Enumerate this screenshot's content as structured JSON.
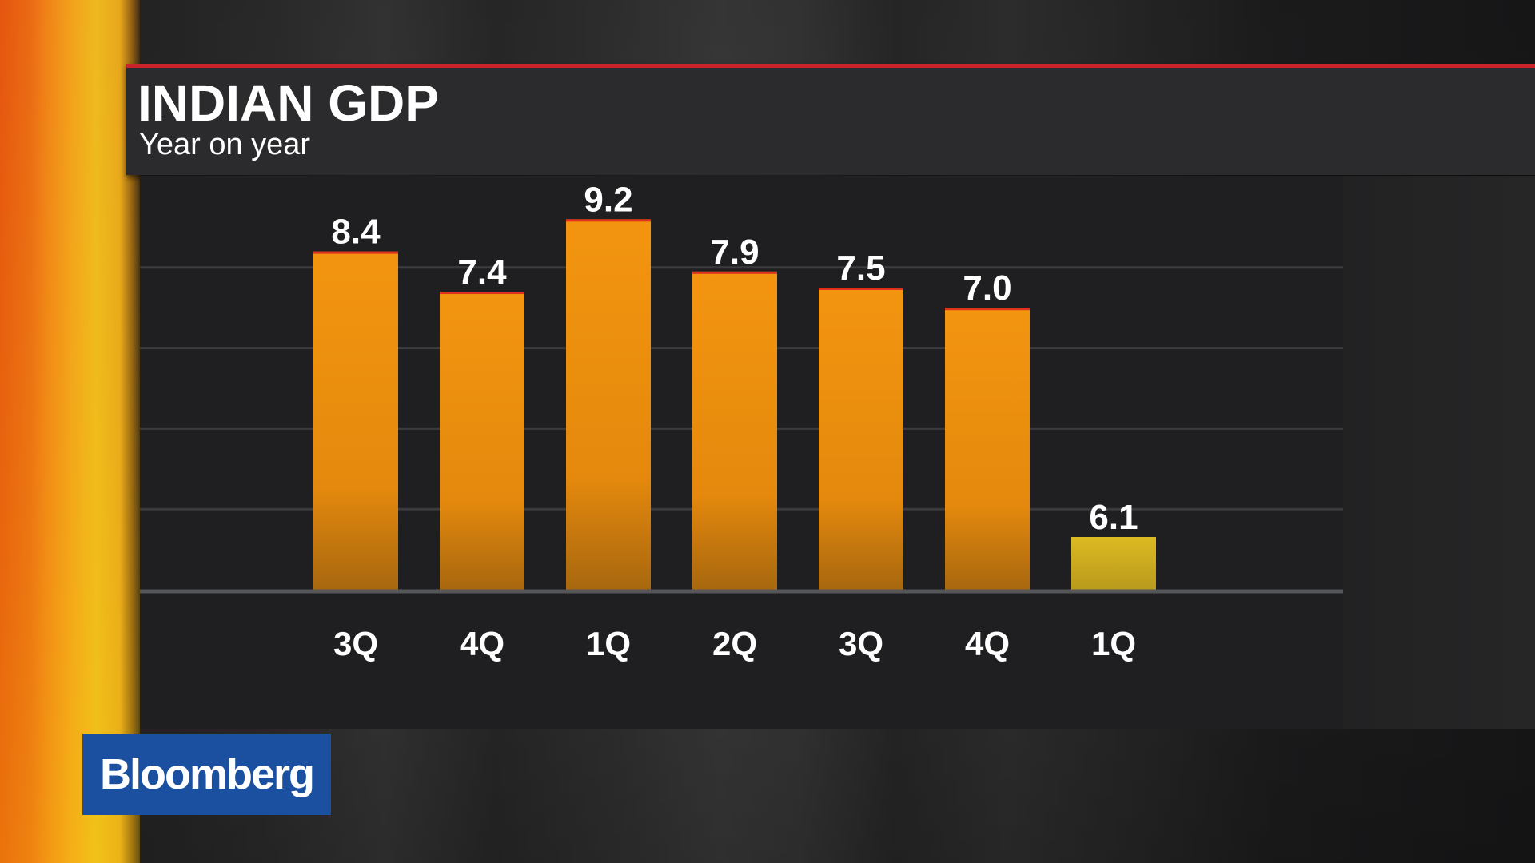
{
  "header": {
    "title": "INDIAN GDP",
    "subtitle": "Year on year"
  },
  "brand": {
    "name": "Bloomberg"
  },
  "colors": {
    "accent_red": "#c8242b",
    "bar_orange": "#f0960d",
    "bar_highlight": "#d8b21e",
    "brand_blue": "#1b50a0"
  },
  "chart_data": {
    "type": "bar",
    "title": "INDIAN GDP",
    "subtitle": "Year on year",
    "categories": [
      "3Q",
      "4Q",
      "1Q",
      "2Q",
      "3Q",
      "4Q",
      "1Q"
    ],
    "values": [
      8.4,
      7.4,
      9.2,
      7.9,
      7.5,
      7.0,
      6.1
    ],
    "data_labels": [
      "8.4",
      "7.4",
      "9.2",
      "7.9",
      "7.5",
      "7.0",
      "6.1"
    ],
    "highlight_index": 6,
    "xlabel": "",
    "ylabel": "",
    "ylim": [
      0,
      10
    ],
    "grid": true,
    "legend": "none"
  }
}
